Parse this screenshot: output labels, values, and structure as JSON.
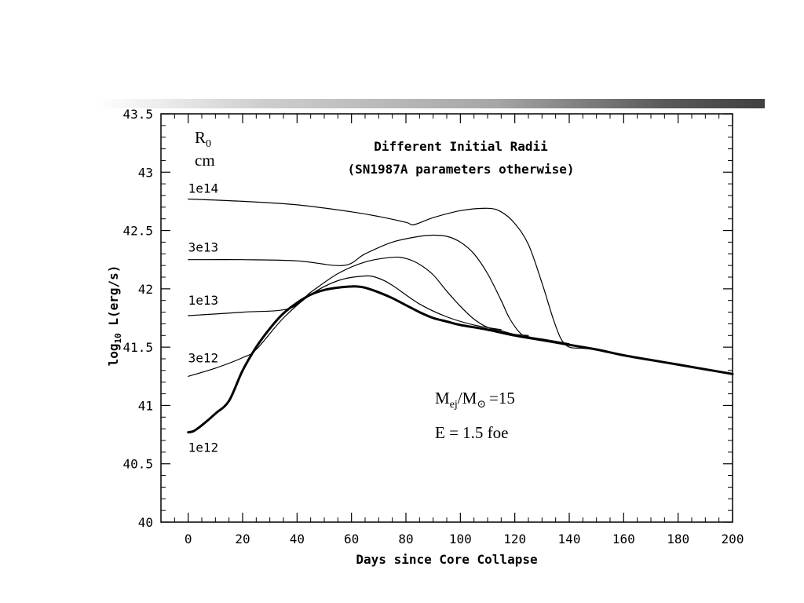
{
  "chart_data": {
    "type": "line",
    "title": "Different Initial Radii",
    "subtitle": "(SN1987A parameters otherwise)",
    "xlabel": "Days since Core Collapse",
    "ylabel_pre": "log",
    "ylabel_sub": "10",
    "ylabel_post": " L(erg/s)",
    "xlim": [
      -10,
      200
    ],
    "ylim": [
      40,
      43.5
    ],
    "xticks": [
      0,
      20,
      40,
      60,
      80,
      100,
      120,
      140,
      160,
      180,
      200
    ],
    "yticks": [
      40,
      40.5,
      41,
      41.5,
      42,
      42.5,
      43,
      43.5
    ],
    "xtick_labels": [
      "0",
      "20",
      "40",
      "60",
      "80",
      "100",
      "120",
      "140",
      "160",
      "180",
      "200"
    ],
    "ytick_labels": [
      "40",
      "40.5",
      "41",
      "41.5",
      "42",
      "42.5",
      "43",
      "43.5"
    ],
    "grid": false,
    "legend_header": {
      "line1_main": "R",
      "line1_sub": "0",
      "line2": "cm"
    },
    "annotation_mass": {
      "main": "M",
      "sub": "ej",
      "rest": "/M",
      "sym": "⊙",
      "tail": "=15"
    },
    "annotation_energy": "E = 1.5 foe",
    "series": [
      {
        "name": "1e14",
        "bold": false,
        "x": [
          0,
          20,
          40,
          60,
          70,
          80,
          83,
          90,
          100,
          110,
          115,
          120,
          125,
          130,
          134,
          137,
          140,
          145,
          150
        ],
        "y": [
          42.77,
          42.75,
          42.72,
          42.66,
          42.62,
          42.57,
          42.55,
          42.61,
          42.67,
          42.69,
          42.66,
          42.56,
          42.38,
          42.05,
          41.75,
          41.57,
          41.5,
          41.49,
          41.48
        ]
      },
      {
        "name": "3e13",
        "bold": false,
        "x": [
          0,
          20,
          40,
          57,
          65,
          75,
          85,
          90,
          95,
          100,
          105,
          110,
          115,
          118,
          122,
          125,
          130,
          140
        ],
        "y": [
          42.25,
          42.25,
          42.24,
          42.2,
          42.3,
          42.4,
          42.45,
          42.46,
          42.45,
          42.4,
          42.3,
          42.13,
          41.9,
          41.75,
          41.62,
          41.59,
          41.57,
          41.53
        ]
      },
      {
        "name": "1e13",
        "bold": false,
        "x": [
          0,
          20,
          37,
          45,
          55,
          65,
          75,
          80,
          85,
          90,
          95,
          100,
          105,
          110,
          115,
          120,
          125
        ],
        "y": [
          41.77,
          41.8,
          41.83,
          41.97,
          42.13,
          42.23,
          42.27,
          42.26,
          42.21,
          42.12,
          41.98,
          41.85,
          41.74,
          41.67,
          41.64,
          41.61,
          41.6
        ]
      },
      {
        "name": "3e12",
        "bold": false,
        "x": [
          0,
          10,
          20,
          25,
          35,
          45,
          55,
          65,
          70,
          75,
          85,
          95,
          105,
          115
        ],
        "y": [
          41.25,
          41.32,
          41.41,
          41.48,
          41.75,
          41.95,
          42.07,
          42.11,
          42.09,
          42.03,
          41.87,
          41.76,
          41.69,
          41.65
        ]
      },
      {
        "name": "1e12",
        "bold": true,
        "x": [
          0,
          2,
          5,
          10,
          15,
          20,
          25,
          30,
          35,
          40,
          45,
          50,
          55,
          60,
          62,
          65,
          70,
          75,
          80,
          85,
          90,
          95,
          100,
          110,
          120,
          130,
          140,
          150,
          160,
          170,
          180,
          190,
          200
        ],
        "y": [
          40.77,
          40.78,
          40.83,
          40.93,
          41.04,
          41.3,
          41.5,
          41.66,
          41.79,
          41.88,
          41.95,
          41.99,
          42.01,
          42.02,
          42.02,
          42.01,
          41.97,
          41.92,
          41.86,
          41.8,
          41.75,
          41.72,
          41.69,
          41.65,
          41.6,
          41.56,
          41.52,
          41.48,
          41.43,
          41.39,
          41.35,
          41.31,
          41.27
        ]
      }
    ]
  }
}
